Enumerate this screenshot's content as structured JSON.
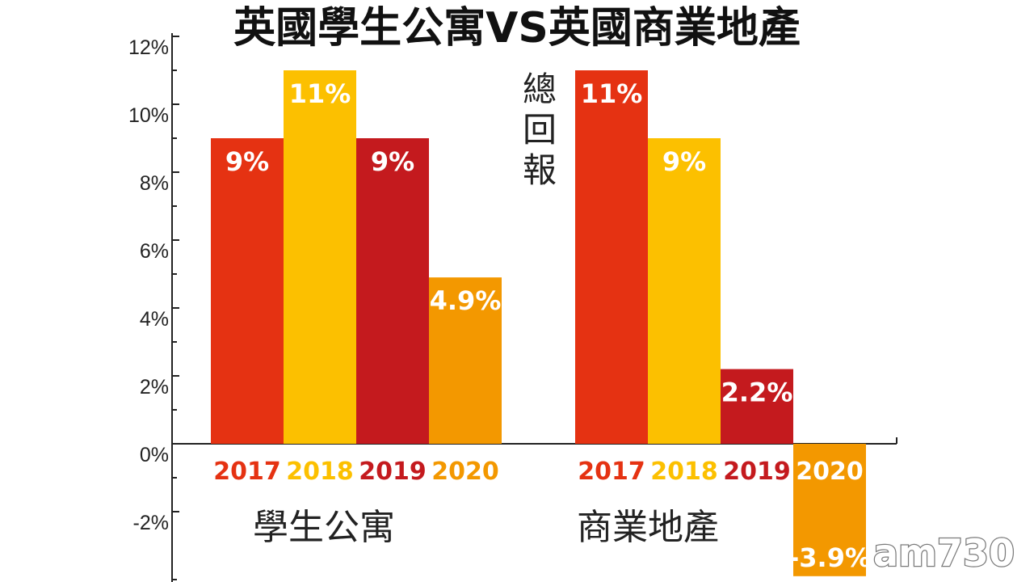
{
  "logo": "am730",
  "colors": {
    "c2017": "#e53212",
    "c2018": "#fcc000",
    "c2019": "#c41a1e",
    "c2020": "#f39800",
    "axis": "#222222"
  },
  "chart_data": {
    "type": "bar",
    "title": "英國學生公寓VS英國商業地產",
    "ylabel": "總回報",
    "ylim": [
      -4,
      12
    ],
    "yticks": [
      {
        "value": 12,
        "label": "12%"
      },
      {
        "value": 10,
        "label": "10%"
      },
      {
        "value": 8,
        "label": "8%"
      },
      {
        "value": 6,
        "label": "6%"
      },
      {
        "value": 4,
        "label": "4%"
      },
      {
        "value": 2,
        "label": "2%"
      },
      {
        "value": 0,
        "label": "0%"
      },
      {
        "value": -2,
        "label": "-2%"
      }
    ],
    "groups": [
      {
        "name": "學生公寓",
        "bars": [
          {
            "year": "2017",
            "value": 9,
            "label": "9%",
            "color": "#e53212",
            "yearColor": "#e53212"
          },
          {
            "year": "2018",
            "value": 11,
            "label": "11%",
            "color": "#fcc000",
            "yearColor": "#fcc000"
          },
          {
            "year": "2019",
            "value": 9,
            "label": "9%",
            "color": "#c41a1e",
            "yearColor": "#c41a1e"
          },
          {
            "year": "2020",
            "value": 4.9,
            "label": "4.9%",
            "color": "#f39800",
            "yearColor": "#f39800"
          }
        ]
      },
      {
        "name": "商業地產",
        "bars": [
          {
            "year": "2017",
            "value": 11,
            "label": "11%",
            "color": "#e53212",
            "yearColor": "#e53212"
          },
          {
            "year": "2018",
            "value": 9,
            "label": "9%",
            "color": "#fcc000",
            "yearColor": "#fcc000"
          },
          {
            "year": "2019",
            "value": 2.2,
            "label": "2.2%",
            "color": "#c41a1e",
            "yearColor": "#c41a1e"
          },
          {
            "year": "2020",
            "value": -3.9,
            "label": "-3.9%",
            "color": "#f39800",
            "yearColor": "#ffffff"
          }
        ]
      }
    ]
  }
}
